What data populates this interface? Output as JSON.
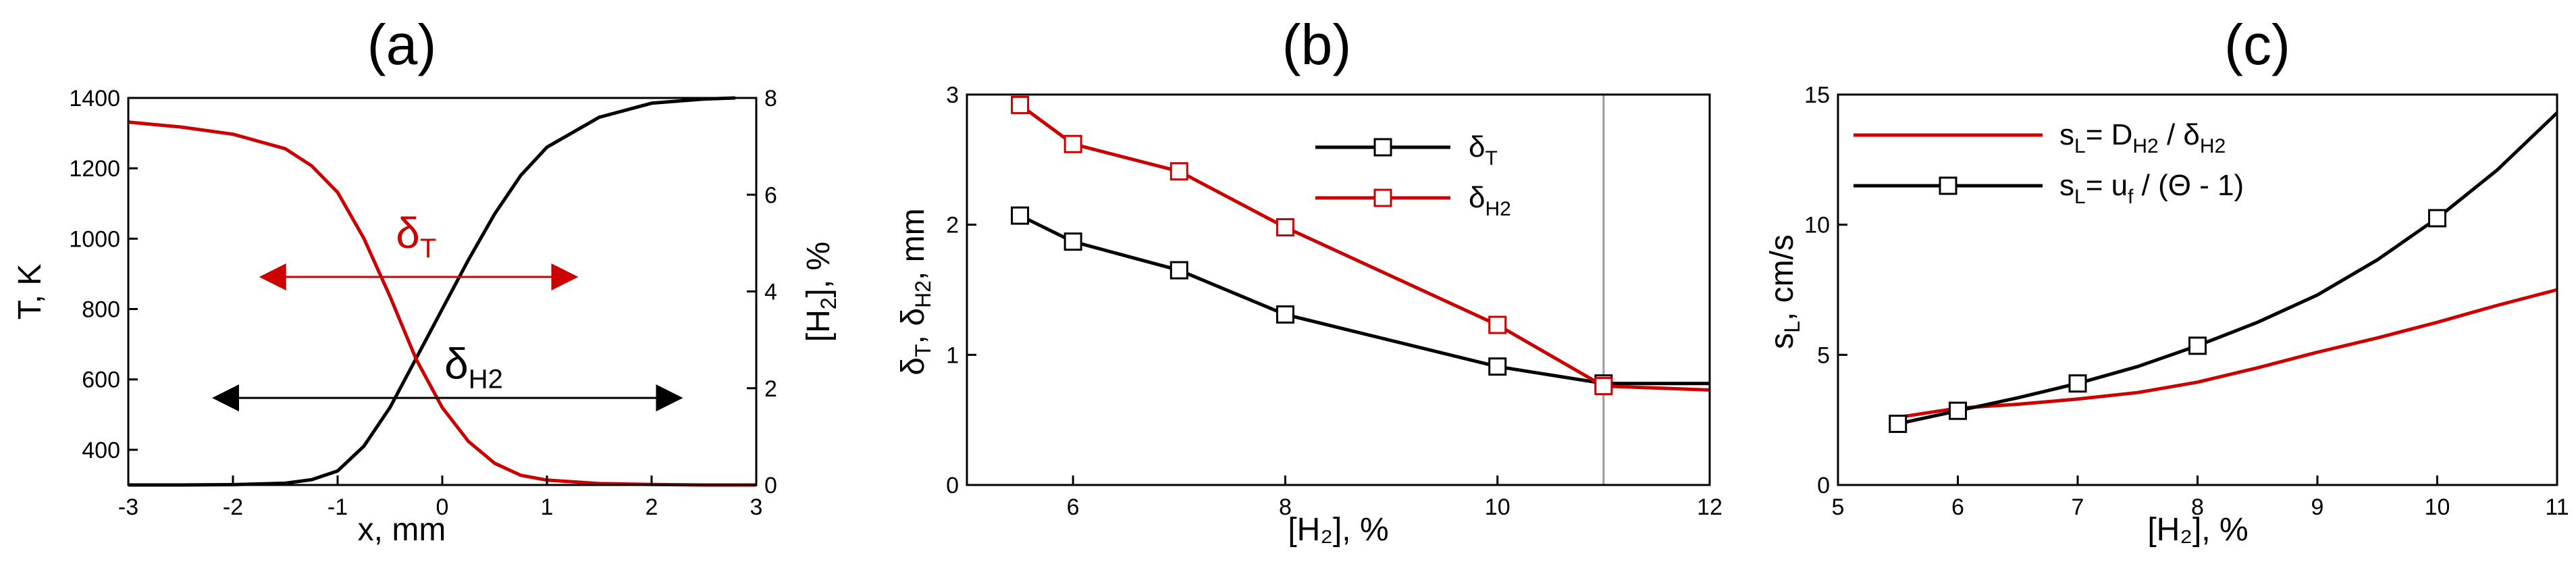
{
  "colors": {
    "red": "#cc0000",
    "black": "#000000",
    "vline": "#9a9a9a"
  },
  "chart_data": [
    {
      "type": "line",
      "title": "(a)",
      "xlabel": "x, mm",
      "ylabel": "T, K",
      "ylabel2_prefix": "[H",
      "ylabel2_sub": "2",
      "ylabel2_suffix": "], %",
      "xlim": [
        -3,
        3
      ],
      "ylim": [
        300,
        1400
      ],
      "ylim2": [
        0,
        8
      ],
      "xticks": [
        -3,
        -2,
        -1,
        0,
        1,
        2,
        3
      ],
      "yticks": [
        400,
        600,
        800,
        1000,
        1200,
        1400
      ],
      "yticks2": [
        0,
        2,
        4,
        6,
        8
      ],
      "series": [
        {
          "name": "T",
          "axis": "left",
          "color": "#000000",
          "x": [
            -3.0,
            -2.5,
            -2.0,
            -1.5,
            -1.25,
            -1.0,
            -0.75,
            -0.5,
            -0.25,
            0.0,
            0.25,
            0.5,
            0.75,
            1.0,
            1.5,
            2.0,
            2.5,
            2.8
          ],
          "y": [
            300,
            300,
            301,
            305,
            315,
            340,
            410,
            520,
            660,
            800,
            940,
            1070,
            1180,
            1260,
            1345,
            1385,
            1397,
            1400
          ]
        },
        {
          "name": "[H2]",
          "axis": "right",
          "color": "#cc0000",
          "x": [
            -3.0,
            -2.5,
            -2.0,
            -1.5,
            -1.25,
            -1.0,
            -0.75,
            -0.5,
            -0.25,
            0.0,
            0.25,
            0.5,
            0.75,
            1.0,
            1.5,
            2.0,
            2.5,
            3.0
          ],
          "y": [
            7.5,
            7.4,
            7.25,
            6.95,
            6.6,
            6.05,
            5.1,
            3.9,
            2.6,
            1.6,
            0.9,
            0.45,
            0.2,
            0.1,
            0.03,
            0.01,
            0.0,
            0.0
          ]
        }
      ],
      "annotations": [
        {
          "text_main": "δ",
          "text_sub": "T",
          "color": "#cc0000",
          "label_x": -0.25,
          "label_y": 4.9,
          "arrow_y": 4.3,
          "x1": -1.75,
          "x2": 1.3,
          "axis": "right"
        },
        {
          "text_main": "δ",
          "text_sub": "H2",
          "color": "#000000",
          "label_x": 0.3,
          "label_y": 2.2,
          "arrow_y": 1.8,
          "x1": -2.2,
          "x2": 2.3,
          "axis": "right"
        }
      ]
    },
    {
      "type": "line",
      "title": "(b)",
      "xlabel": "[H₂], %",
      "ylabel": "δT, δH2, mm",
      "xlim": [
        5,
        12
      ],
      "ylim": [
        0,
        3
      ],
      "xticks": [
        6,
        8,
        10,
        12
      ],
      "yticks": [
        0,
        1,
        2,
        3
      ],
      "vline_x": 11,
      "series": [
        {
          "name": "δT",
          "legend_sub": "T",
          "color": "#000000",
          "marker": "square",
          "x": [
            5.5,
            6,
            7,
            8,
            10,
            11
          ],
          "y": [
            2.07,
            1.87,
            1.65,
            1.31,
            0.91,
            0.78
          ],
          "tail_x": [
            11,
            12
          ],
          "tail_y": [
            0.78,
            0.78
          ]
        },
        {
          "name": "δH2",
          "legend_sub": "H2",
          "color": "#cc0000",
          "marker": "square",
          "x": [
            5.5,
            6,
            7,
            8,
            10,
            11
          ],
          "y": [
            2.92,
            2.62,
            2.41,
            1.98,
            1.23,
            0.76
          ],
          "tail_x": [
            11,
            12
          ],
          "tail_y": [
            0.76,
            0.73
          ]
        }
      ]
    },
    {
      "type": "line",
      "title": "(c)",
      "xlabel": "[H₂], %",
      "ylabel": "sL, cm/s",
      "xlim": [
        5,
        11
      ],
      "ylim": [
        0,
        15
      ],
      "xticks": [
        5,
        6,
        7,
        8,
        9,
        10,
        11
      ],
      "yticks": [
        0,
        5,
        10,
        15
      ],
      "series": [
        {
          "name": "sL= DH2 / δH2",
          "color": "#cc0000",
          "marker": "none",
          "x": [
            5.5,
            6,
            6.5,
            7,
            7.5,
            8,
            8.5,
            9,
            9.5,
            10,
            10.5,
            11
          ],
          "y": [
            2.6,
            2.95,
            3.1,
            3.3,
            3.55,
            3.95,
            4.5,
            5.1,
            5.65,
            6.25,
            6.9,
            7.5
          ]
        },
        {
          "name": "sL= uf / (Θ - 1)",
          "color": "#000000",
          "marker": "square",
          "x": [
            5.5,
            6,
            7,
            8,
            10
          ],
          "y": [
            2.35,
            2.85,
            3.9,
            5.35,
            10.25
          ],
          "curve_x": [
            5.5,
            6,
            6.5,
            7,
            7.5,
            8,
            8.5,
            9,
            9.5,
            10,
            10.5,
            11
          ],
          "curve_y": [
            2.35,
            2.85,
            3.35,
            3.9,
            4.55,
            5.35,
            6.25,
            7.3,
            8.65,
            10.25,
            12.1,
            14.3
          ]
        }
      ]
    }
  ]
}
